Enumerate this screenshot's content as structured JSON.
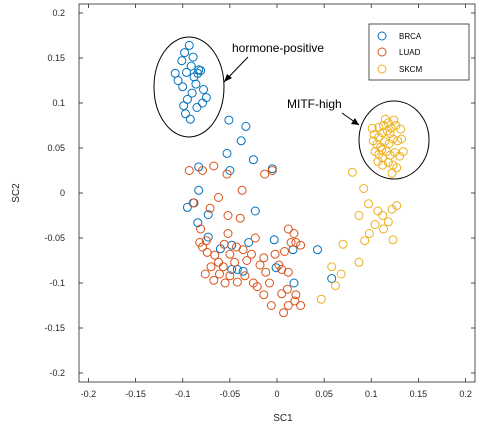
{
  "chart_data": {
    "type": "scatter",
    "xlabel": "SC1",
    "ylabel": "SC2",
    "xlim": [
      -0.21,
      0.21
    ],
    "ylim": [
      -0.21,
      0.21
    ],
    "xticks": [
      -0.2,
      -0.15,
      -0.1,
      -0.05,
      0,
      0.05,
      0.1,
      0.15,
      0.2
    ],
    "xtick_labels": [
      "-0.2",
      "-0.15",
      "-0.1",
      "-0.05",
      "0",
      "0.05",
      "0.1",
      "0.15",
      "0.2"
    ],
    "yticks": [
      -0.2,
      -0.15,
      -0.1,
      -0.05,
      0,
      0.05,
      0.1,
      0.15,
      0.2
    ],
    "ytick_labels": [
      "-0.2",
      "-0.15",
      "-0.1",
      "-0.05",
      "0",
      "0.05",
      "0.1",
      "0.15",
      "0.2"
    ],
    "grid": false,
    "legend_position": "top-right",
    "marker": "open-circle",
    "series": [
      {
        "name": "BRCA",
        "color": "#0072BD",
        "points": [
          [
            -0.108,
            0.133
          ],
          [
            -0.101,
            0.147
          ],
          [
            -0.098,
            0.156
          ],
          [
            -0.093,
            0.164
          ],
          [
            -0.105,
            0.125
          ],
          [
            -0.1,
            0.118
          ],
          [
            -0.096,
            0.134
          ],
          [
            -0.091,
            0.141
          ],
          [
            -0.088,
            0.129
          ],
          [
            -0.084,
            0.133
          ],
          [
            -0.081,
            0.136
          ],
          [
            -0.086,
            0.121
          ],
          [
            -0.09,
            0.111
          ],
          [
            -0.095,
            0.104
          ],
          [
            -0.099,
            0.097
          ],
          [
            -0.097,
            0.088
          ],
          [
            -0.092,
            0.082
          ],
          [
            -0.085,
            0.095
          ],
          [
            -0.079,
            0.1
          ],
          [
            -0.075,
            0.106
          ],
          [
            -0.078,
            0.115
          ],
          [
            -0.083,
            0.137
          ],
          [
            -0.089,
            0.151
          ],
          [
            -0.051,
            0.081
          ],
          [
            -0.033,
            0.074
          ],
          [
            -0.038,
            0.058
          ],
          [
            -0.053,
            0.044
          ],
          [
            -0.025,
            0.037
          ],
          [
            -0.05,
            0.025
          ],
          [
            -0.005,
            0.027
          ],
          [
            -0.083,
            0.029
          ],
          [
            -0.083,
            0.003
          ],
          [
            -0.088,
            -0.011
          ],
          [
            -0.073,
            -0.024
          ],
          [
            -0.095,
            -0.016
          ],
          [
            -0.084,
            -0.033
          ],
          [
            -0.073,
            -0.049
          ],
          [
            -0.06,
            -0.062
          ],
          [
            -0.048,
            -0.058
          ],
          [
            -0.03,
            -0.055
          ],
          [
            -0.023,
            -0.02
          ],
          [
            -0.003,
            -0.052
          ],
          [
            -0.001,
            -0.083
          ],
          [
            0.017,
            -0.063
          ],
          [
            0.018,
            -0.1
          ],
          [
            0.043,
            -0.063
          ],
          [
            0.058,
            -0.095
          ],
          [
            -0.048,
            -0.085
          ],
          [
            -0.042,
            -0.085
          ],
          [
            -0.036,
            -0.087
          ]
        ]
      },
      {
        "name": "LUAD",
        "color": "#D95319",
        "points": [
          [
            -0.093,
            0.025
          ],
          [
            -0.079,
            0.025
          ],
          [
            -0.067,
            0.03
          ],
          [
            -0.053,
            0.021
          ],
          [
            -0.037,
            0.003
          ],
          [
            -0.013,
            0.021
          ],
          [
            -0.005,
            0.025
          ],
          [
            -0.089,
            -0.011
          ],
          [
            -0.071,
            -0.017
          ],
          [
            -0.062,
            -0.005
          ],
          [
            -0.052,
            -0.025
          ],
          [
            -0.039,
            -0.028
          ],
          [
            -0.052,
            -0.045
          ],
          [
            -0.056,
            -0.057
          ],
          [
            -0.075,
            -0.053
          ],
          [
            -0.079,
            -0.06
          ],
          [
            -0.082,
            -0.055
          ],
          [
            -0.074,
            -0.066
          ],
          [
            -0.07,
            -0.082
          ],
          [
            -0.066,
            -0.069
          ],
          [
            -0.062,
            -0.077
          ],
          [
            -0.057,
            -0.082
          ],
          [
            -0.05,
            -0.068
          ],
          [
            -0.045,
            -0.077
          ],
          [
            -0.043,
            -0.06
          ],
          [
            -0.036,
            -0.063
          ],
          [
            -0.032,
            -0.075
          ],
          [
            -0.027,
            -0.068
          ],
          [
            -0.023,
            -0.05
          ],
          [
            -0.018,
            -0.08
          ],
          [
            -0.014,
            -0.072
          ],
          [
            -0.012,
            -0.088
          ],
          [
            -0.008,
            -0.1
          ],
          [
            -0.002,
            -0.068
          ],
          [
            0.002,
            -0.08
          ],
          [
            0.005,
            -0.085
          ],
          [
            0.012,
            -0.088
          ],
          [
            0.008,
            -0.065
          ],
          [
            0.012,
            -0.04
          ],
          [
            0.018,
            -0.045
          ],
          [
            0.02,
            -0.055
          ],
          [
            0.025,
            -0.058
          ],
          [
            -0.061,
            -0.09
          ],
          [
            -0.055,
            -0.1
          ],
          [
            -0.05,
            -0.092
          ],
          [
            -0.042,
            -0.099
          ],
          [
            -0.034,
            -0.092
          ],
          [
            -0.025,
            -0.1
          ],
          [
            -0.021,
            -0.104
          ],
          [
            -0.014,
            -0.113
          ],
          [
            0.011,
            -0.107
          ],
          [
            0.019,
            -0.12
          ],
          [
            0.005,
            -0.112
          ],
          [
            -0.006,
            -0.125
          ],
          [
            -0.081,
            -0.04
          ],
          [
            -0.067,
            -0.097
          ],
          [
            -0.076,
            -0.09
          ],
          [
            0.007,
            -0.133
          ],
          [
            0.012,
            -0.125
          ],
          [
            0.02,
            -0.113
          ],
          [
            0.025,
            -0.125
          ],
          [
            0.015,
            -0.055
          ]
        ]
      },
      {
        "name": "SKCM",
        "color": "#EDB120",
        "points": [
          [
            0.101,
            0.072
          ],
          [
            0.108,
            0.073
          ],
          [
            0.113,
            0.075
          ],
          [
            0.118,
            0.078
          ],
          [
            0.124,
            0.081
          ],
          [
            0.103,
            0.065
          ],
          [
            0.108,
            0.062
          ],
          [
            0.112,
            0.067
          ],
          [
            0.117,
            0.069
          ],
          [
            0.121,
            0.072
          ],
          [
            0.126,
            0.075
          ],
          [
            0.131,
            0.071
          ],
          [
            0.102,
            0.058
          ],
          [
            0.106,
            0.054
          ],
          [
            0.11,
            0.051
          ],
          [
            0.114,
            0.057
          ],
          [
            0.119,
            0.055
          ],
          [
            0.123,
            0.06
          ],
          [
            0.128,
            0.058
          ],
          [
            0.132,
            0.06
          ],
          [
            0.104,
            0.046
          ],
          [
            0.108,
            0.043
          ],
          [
            0.112,
            0.039
          ],
          [
            0.116,
            0.046
          ],
          [
            0.12,
            0.042
          ],
          [
            0.125,
            0.045
          ],
          [
            0.13,
            0.041
          ],
          [
            0.134,
            0.046
          ],
          [
            0.107,
            0.035
          ],
          [
            0.112,
            0.031
          ],
          [
            0.118,
            0.034
          ],
          [
            0.123,
            0.031
          ],
          [
            0.127,
            0.028
          ],
          [
            0.122,
            0.022
          ],
          [
            0.115,
            0.082
          ],
          [
            0.12,
            0.066
          ],
          [
            0.111,
            0.048
          ],
          [
            0.092,
            0.005
          ],
          [
            0.097,
            -0.012
          ],
          [
            0.107,
            -0.02
          ],
          [
            0.112,
            -0.025
          ],
          [
            0.122,
            -0.018
          ],
          [
            0.127,
            -0.014
          ],
          [
            0.118,
            -0.032
          ],
          [
            0.104,
            -0.035
          ],
          [
            0.098,
            -0.045
          ],
          [
            0.113,
            -0.04
          ],
          [
            0.087,
            -0.025
          ],
          [
            0.07,
            -0.057
          ],
          [
            0.093,
            -0.053
          ],
          [
            0.087,
            -0.077
          ],
          [
            0.058,
            -0.082
          ],
          [
            0.068,
            -0.09
          ],
          [
            0.062,
            -0.103
          ],
          [
            0.047,
            -0.118
          ],
          [
            0.08,
            0.023
          ],
          [
            0.123,
            -0.052
          ]
        ]
      }
    ],
    "annotations": [
      {
        "text": "hormone-positive",
        "color": "#000000"
      },
      {
        "text": "MITF-high",
        "color": "#000000"
      }
    ]
  }
}
